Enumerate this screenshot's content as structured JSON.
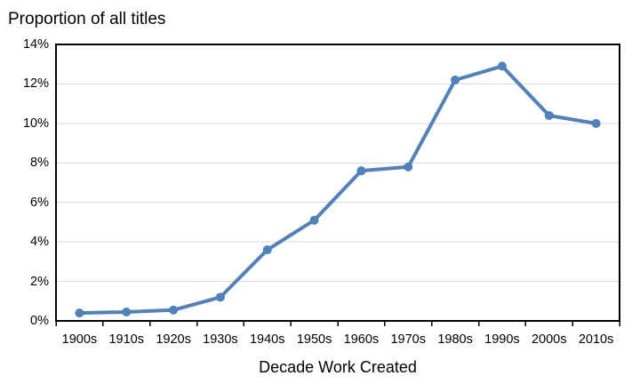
{
  "page": {
    "background": "#FFFFFF"
  },
  "chart_data": {
    "type": "line",
    "title": "Proportion of all titles",
    "xlabel": "Decade Work Created",
    "ylabel": "",
    "categories": [
      "1900s",
      "1910s",
      "1920s",
      "1930s",
      "1940s",
      "1950s",
      "1960s",
      "1970s",
      "1980s",
      "1990s",
      "2000s",
      "2010s"
    ],
    "values": [
      0.4,
      0.45,
      0.55,
      1.2,
      3.6,
      5.1,
      7.6,
      7.8,
      12.2,
      12.9,
      10.4,
      10
    ],
    "unit": "%",
    "ylim": [
      0,
      14
    ],
    "y_tick_interval": 2,
    "y_tick_labels": [
      "0%",
      "2%",
      "4%",
      "6%",
      "8%",
      "10%",
      "12%",
      "14%"
    ],
    "grid": "horizontal",
    "legend": "none",
    "marker": "circle",
    "colors": {
      "line": "#4F81BD",
      "marker": "#4F81BD",
      "grid": "#D9D9D9",
      "axis": "#000000",
      "text": "#000000",
      "background": "#FFFFFF"
    }
  }
}
